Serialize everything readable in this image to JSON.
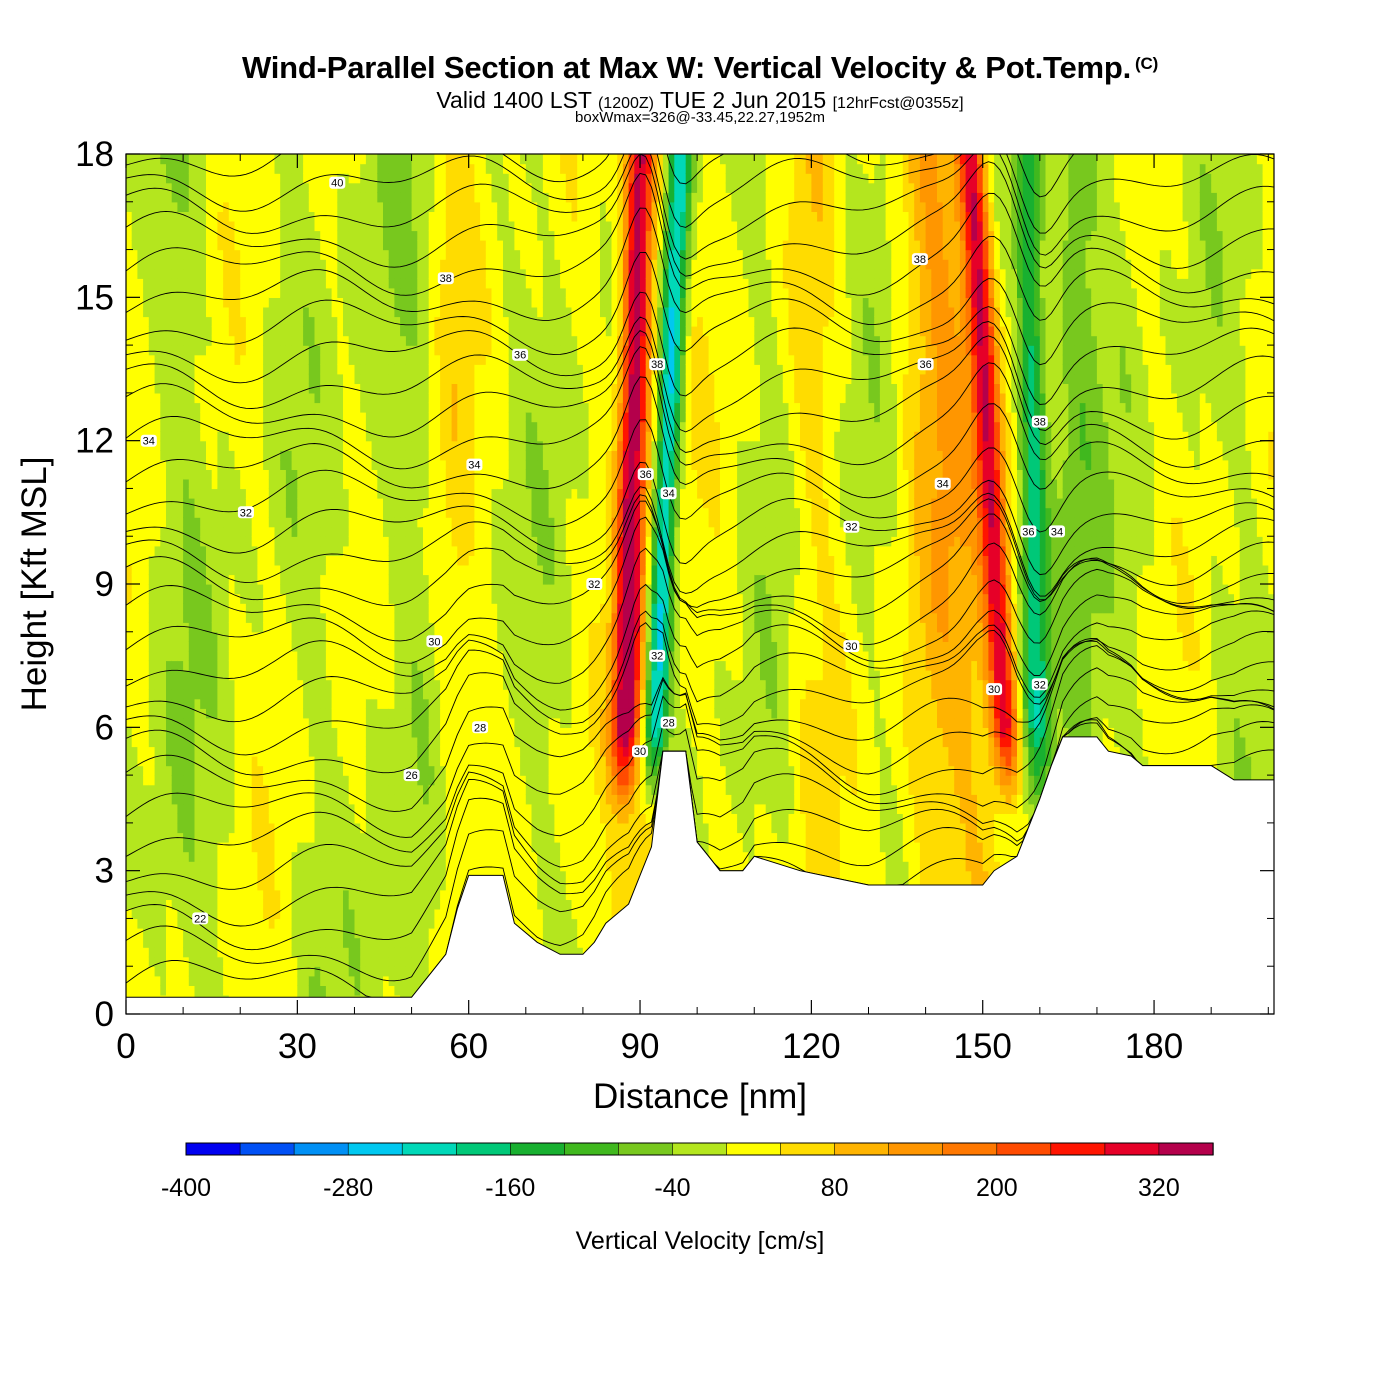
{
  "header": {
    "title": "Wind-Parallel Section at Max W: Vertical Velocity & Pot.Temp.",
    "copyright": "(C)",
    "valid_prefix": "Valid 1400 LST",
    "valid_utc": "(1200Z)",
    "valid_date": "TUE 2 Jun 2015",
    "forecast": "[12hrFcst@0355z]",
    "box_info": "boxWmax=326@-33.45,22.27,1952m"
  },
  "chart_data": {
    "type": "heatmap",
    "title": "Wind-Parallel Section at Max W: Vertical Velocity & Pot.Temp.",
    "xlabel": "Distance [nm]",
    "ylabel": "Height [Kft MSL]",
    "xlim": [
      0,
      201
    ],
    "ylim": [
      0,
      18
    ],
    "x_ticks": [
      "0",
      "30",
      "60",
      "90",
      "120",
      "150",
      "180"
    ],
    "y_ticks": [
      "0",
      "3",
      "6",
      "9",
      "12",
      "15",
      "18"
    ],
    "colorbar": {
      "title": "Vertical Velocity [cm/s]",
      "range": [
        -400,
        360
      ],
      "labels": [
        "-400",
        "-280",
        "-160",
        "-40",
        "80",
        "200",
        "320"
      ],
      "colors": [
        "#0000f0",
        "#0050f5",
        "#0090f5",
        "#00c8f0",
        "#00d8b8",
        "#00c878",
        "#18b030",
        "#40b81e",
        "#78c81e",
        "#b4e61e",
        "#ffff00",
        "#ffdc00",
        "#ffb400",
        "#ff9600",
        "#ff7800",
        "#ff4b00",
        "#ff1400",
        "#e60028",
        "#b4004b"
      ]
    },
    "updraft_bands": [
      {
        "base_x": 87,
        "top_x": 90,
        "peak_cm_s": 326
      },
      {
        "base_x": 155,
        "top_x": 148,
        "peak_cm_s": 300
      }
    ],
    "downdraft_bands": [
      {
        "base_x": 92,
        "top_x": 97,
        "min_cm_s": -300
      },
      {
        "base_x": 160,
        "top_x": 158,
        "min_cm_s": -180
      }
    ],
    "terrain": [
      [
        0,
        0.35
      ],
      [
        50,
        0.35
      ],
      [
        52,
        0.65
      ],
      [
        56,
        1.25
      ],
      [
        58,
        2.2
      ],
      [
        60,
        2.9
      ],
      [
        66,
        2.9
      ],
      [
        68,
        1.9
      ],
      [
        72,
        1.5
      ],
      [
        76,
        1.25
      ],
      [
        80,
        1.25
      ],
      [
        82,
        1.5
      ],
      [
        84,
        1.9
      ],
      [
        88,
        2.3
      ],
      [
        90,
        2.9
      ],
      [
        92,
        3.5
      ],
      [
        93,
        4.5
      ],
      [
        94,
        5.5
      ],
      [
        98,
        5.5
      ],
      [
        100,
        3.6
      ],
      [
        102,
        3.3
      ],
      [
        104,
        3.0
      ],
      [
        108,
        3.0
      ],
      [
        110,
        3.3
      ],
      [
        118,
        3.0
      ],
      [
        130,
        2.7
      ],
      [
        150,
        2.7
      ],
      [
        152,
        3.0
      ],
      [
        156,
        3.3
      ],
      [
        160,
        4.5
      ],
      [
        162,
        5.2
      ],
      [
        164,
        5.8
      ],
      [
        170,
        5.8
      ],
      [
        172,
        5.5
      ],
      [
        176,
        5.4
      ],
      [
        178,
        5.2
      ],
      [
        190,
        5.2
      ],
      [
        194,
        4.9
      ],
      [
        201,
        4.9
      ]
    ],
    "theta_labels": [
      {
        "text": "40",
        "x": 37,
        "y": 17.4
      },
      {
        "text": "38",
        "x": 56,
        "y": 15.4
      },
      {
        "text": "36",
        "x": 69,
        "y": 13.8
      },
      {
        "text": "34",
        "x": 4,
        "y": 12.0
      },
      {
        "text": "34",
        "x": 61,
        "y": 11.5
      },
      {
        "text": "32",
        "x": 21,
        "y": 10.5
      },
      {
        "text": "32",
        "x": 82,
        "y": 9.0
      },
      {
        "text": "30",
        "x": 54,
        "y": 7.8
      },
      {
        "text": "28",
        "x": 62,
        "y": 6.0
      },
      {
        "text": "26",
        "x": 50,
        "y": 5.0
      },
      {
        "text": "22",
        "x": 13,
        "y": 2.0
      },
      {
        "text": "38",
        "x": 93,
        "y": 13.6
      },
      {
        "text": "36",
        "x": 91,
        "y": 11.3
      },
      {
        "text": "34",
        "x": 95,
        "y": 10.9
      },
      {
        "text": "32",
        "x": 93,
        "y": 7.5
      },
      {
        "text": "28",
        "x": 95,
        "y": 6.1
      },
      {
        "text": "30",
        "x": 90,
        "y": 5.5
      },
      {
        "text": "38",
        "x": 139,
        "y": 15.8
      },
      {
        "text": "36",
        "x": 140,
        "y": 13.6
      },
      {
        "text": "34",
        "x": 143,
        "y": 11.1
      },
      {
        "text": "32",
        "x": 127,
        "y": 10.2
      },
      {
        "text": "30",
        "x": 127,
        "y": 7.7
      },
      {
        "text": "38",
        "x": 160,
        "y": 12.4
      },
      {
        "text": "36",
        "x": 158,
        "y": 10.1
      },
      {
        "text": "34",
        "x": 163,
        "y": 10.1
      },
      {
        "text": "32",
        "x": 160,
        "y": 6.9
      },
      {
        "text": "30",
        "x": 152,
        "y": 6.8
      }
    ]
  }
}
